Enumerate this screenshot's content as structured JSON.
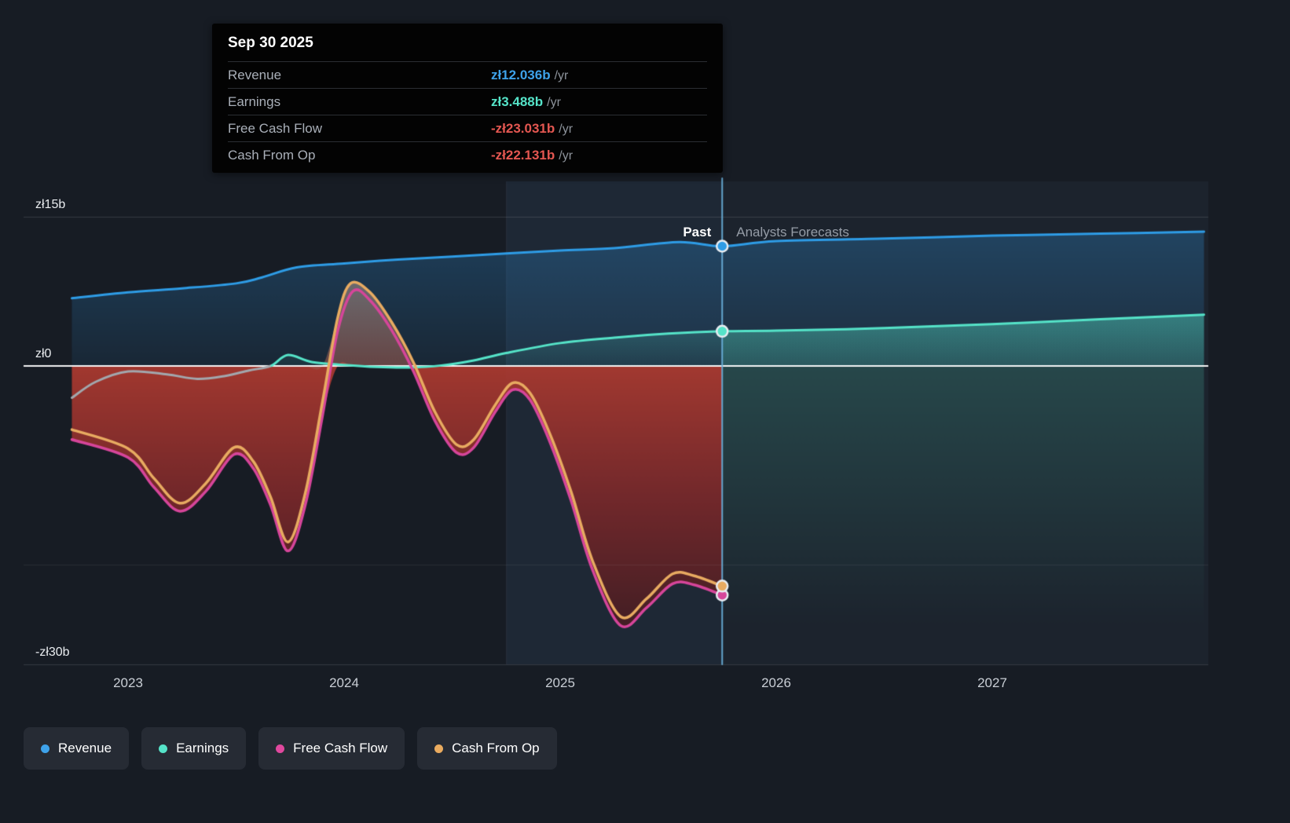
{
  "page": {
    "bg": "#171c24"
  },
  "tooltip": {
    "date": "Sep 30 2025",
    "rows": [
      {
        "label": "Revenue",
        "value": "zł12.036b",
        "suffix": "/yr",
        "color": "#3ea2ea"
      },
      {
        "label": "Earnings",
        "value": "zł3.488b",
        "suffix": "/yr",
        "color": "#55e3c8"
      },
      {
        "label": "Free Cash Flow",
        "value": "-zł23.031b",
        "suffix": "/yr",
        "color": "#e45751"
      },
      {
        "label": "Cash From Op",
        "value": "-zł22.131b",
        "suffix": "/yr",
        "color": "#e45751"
      }
    ]
  },
  "legend": {
    "items": [
      {
        "label": "Revenue",
        "color": "#3ea2ea"
      },
      {
        "label": "Earnings",
        "color": "#55e3c8"
      },
      {
        "label": "Free Cash Flow",
        "color": "#e0489e"
      },
      {
        "label": "Cash From Op",
        "color": "#eaab5f"
      }
    ]
  },
  "chart_data": {
    "type": "line",
    "currency": "zł",
    "unit": "billions",
    "past_label": "Past",
    "forecast_label": "Analysts Forecasts",
    "divider_x": 2025.75,
    "divider_date": "Sep 30 2025",
    "highlight_band": [
      2024.75,
      2025.75
    ],
    "x_domain": [
      2022.52,
      2027.98
    ],
    "y_domain": [
      -30,
      15
    ],
    "x_ticks": [
      {
        "v": 2023,
        "label": "2023"
      },
      {
        "v": 2024,
        "label": "2024"
      },
      {
        "v": 2025,
        "label": "2025"
      },
      {
        "v": 2026,
        "label": "2026"
      },
      {
        "v": 2027,
        "label": "2027"
      }
    ],
    "y_ticks": [
      {
        "v": 15,
        "label": "zł15b"
      },
      {
        "v": 0,
        "label": "zł0"
      },
      {
        "v": -30,
        "label": "-zł30b"
      }
    ],
    "gridlines": [
      {
        "v": 15,
        "alpha": 0.13
      },
      {
        "v": -20,
        "alpha": 0.07
      },
      {
        "v": -30,
        "alpha": 0.13
      }
    ],
    "series": [
      {
        "name": "Revenue",
        "color": "#2e9ce6",
        "width": 3,
        "marker_value": 12.036,
        "points": [
          [
            2022.74,
            6.8
          ],
          [
            2023.0,
            7.4
          ],
          [
            2023.25,
            7.8
          ],
          [
            2023.5,
            8.3
          ],
          [
            2023.62,
            8.9
          ],
          [
            2023.78,
            9.9
          ],
          [
            2024.0,
            10.3
          ],
          [
            2024.25,
            10.7
          ],
          [
            2024.5,
            11.0
          ],
          [
            2024.75,
            11.3
          ],
          [
            2025.0,
            11.6
          ],
          [
            2025.25,
            11.85
          ],
          [
            2025.55,
            12.45
          ],
          [
            2025.75,
            12.036
          ],
          [
            2026.0,
            12.55
          ],
          [
            2026.5,
            12.8
          ],
          [
            2027.0,
            13.1
          ],
          [
            2027.5,
            13.3
          ],
          [
            2027.98,
            13.5
          ]
        ]
      },
      {
        "name": "Earnings",
        "color": "#55e3c8",
        "width": 3,
        "marker_value": 3.488,
        "gray_until": 2023.66,
        "gray_color": "#a2a7ad",
        "points": [
          [
            2022.74,
            -3.2
          ],
          [
            2022.85,
            -1.6
          ],
          [
            2023.0,
            -0.55
          ],
          [
            2023.18,
            -0.85
          ],
          [
            2023.32,
            -1.3
          ],
          [
            2023.45,
            -1.0
          ],
          [
            2023.56,
            -0.45
          ],
          [
            2023.66,
            0.0
          ],
          [
            2023.74,
            1.1
          ],
          [
            2023.85,
            0.4
          ],
          [
            2024.0,
            0.1
          ],
          [
            2024.15,
            -0.1
          ],
          [
            2024.3,
            -0.15
          ],
          [
            2024.45,
            0.05
          ],
          [
            2024.6,
            0.55
          ],
          [
            2024.75,
            1.3
          ],
          [
            2025.0,
            2.3
          ],
          [
            2025.25,
            2.85
          ],
          [
            2025.5,
            3.25
          ],
          [
            2025.75,
            3.488
          ],
          [
            2026.0,
            3.55
          ],
          [
            2026.5,
            3.8
          ],
          [
            2027.0,
            4.2
          ],
          [
            2027.5,
            4.7
          ],
          [
            2027.98,
            5.15
          ]
        ]
      },
      {
        "name": "Free Cash Flow",
        "color": "#d6459a",
        "width": 3.5,
        "marker_value": -23.031,
        "points": [
          [
            2022.74,
            -7.4
          ],
          [
            2023.0,
            -9.2
          ],
          [
            2023.12,
            -12.2
          ],
          [
            2023.24,
            -14.6
          ],
          [
            2023.36,
            -12.6
          ],
          [
            2023.49,
            -8.9
          ],
          [
            2023.58,
            -10.3
          ],
          [
            2023.66,
            -14.0
          ],
          [
            2023.74,
            -18.6
          ],
          [
            2023.82,
            -14.0
          ],
          [
            2023.9,
            -5.0
          ],
          [
            2023.97,
            3.5
          ],
          [
            2024.04,
            7.5
          ],
          [
            2024.12,
            6.6
          ],
          [
            2024.22,
            3.6
          ],
          [
            2024.32,
            -0.5
          ],
          [
            2024.42,
            -5.5
          ],
          [
            2024.52,
            -8.7
          ],
          [
            2024.6,
            -8.2
          ],
          [
            2024.7,
            -4.6
          ],
          [
            2024.78,
            -2.4
          ],
          [
            2024.86,
            -3.4
          ],
          [
            2024.95,
            -7.5
          ],
          [
            2025.05,
            -13.5
          ],
          [
            2025.15,
            -20.5
          ],
          [
            2025.28,
            -26.1
          ],
          [
            2025.4,
            -24.3
          ],
          [
            2025.52,
            -21.9
          ],
          [
            2025.62,
            -22.0
          ],
          [
            2025.75,
            -23.031
          ]
        ]
      },
      {
        "name": "Cash From Op",
        "color": "#e8ab61",
        "width": 3.5,
        "marker_value": -22.131,
        "points": [
          [
            2022.74,
            -6.4
          ],
          [
            2023.0,
            -8.3
          ],
          [
            2023.12,
            -11.3
          ],
          [
            2023.24,
            -13.8
          ],
          [
            2023.36,
            -11.8
          ],
          [
            2023.49,
            -8.2
          ],
          [
            2023.58,
            -9.6
          ],
          [
            2023.66,
            -13.2
          ],
          [
            2023.74,
            -17.7
          ],
          [
            2023.82,
            -12.8
          ],
          [
            2023.9,
            -3.6
          ],
          [
            2023.97,
            4.8
          ],
          [
            2024.03,
            8.3
          ],
          [
            2024.12,
            7.4
          ],
          [
            2024.22,
            4.4
          ],
          [
            2024.32,
            0.4
          ],
          [
            2024.42,
            -4.6
          ],
          [
            2024.52,
            -7.9
          ],
          [
            2024.6,
            -7.4
          ],
          [
            2024.7,
            -3.9
          ],
          [
            2024.78,
            -1.7
          ],
          [
            2024.86,
            -2.7
          ],
          [
            2024.95,
            -6.7
          ],
          [
            2025.05,
            -12.6
          ],
          [
            2025.15,
            -19.6
          ],
          [
            2025.28,
            -25.2
          ],
          [
            2025.4,
            -23.4
          ],
          [
            2025.52,
            -20.9
          ],
          [
            2025.62,
            -21.1
          ],
          [
            2025.75,
            -22.131
          ]
        ]
      }
    ]
  }
}
